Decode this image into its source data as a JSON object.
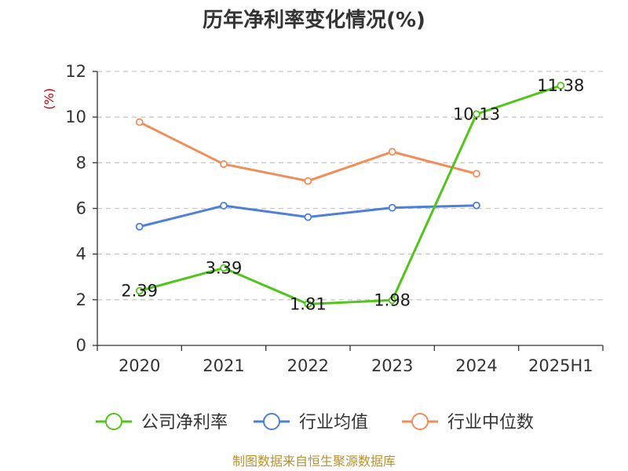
{
  "chart_data": {
    "type": "line",
    "title": "历年净利率变化情况(%)",
    "ylabel": "(%)",
    "xlabel": "",
    "categories": [
      "2020",
      "2021",
      "2022",
      "2023",
      "2024",
      "2025H1"
    ],
    "ylim": [
      0,
      12
    ],
    "yticks": [
      0,
      2,
      4,
      6,
      8,
      10,
      12
    ],
    "grid": true,
    "legend_position": "bottom",
    "series": [
      {
        "name": "公司净利率",
        "color": "#52c41a",
        "values": [
          2.39,
          3.39,
          1.81,
          1.98,
          10.13,
          11.38
        ],
        "labels": [
          "2.39",
          "3.39",
          "1.81",
          "1.98",
          "10.13",
          "11.38"
        ]
      },
      {
        "name": "行业均值",
        "color": "#4f7fd9",
        "values": [
          5.2,
          6.12,
          5.62,
          6.03,
          6.13,
          null
        ]
      },
      {
        "name": "行业中位数",
        "color": "#f28c5a",
        "values": [
          9.78,
          7.94,
          7.2,
          8.48,
          7.52,
          null
        ]
      }
    ]
  },
  "footer": {
    "source": "制图数据来自恒生聚源数据库"
  }
}
